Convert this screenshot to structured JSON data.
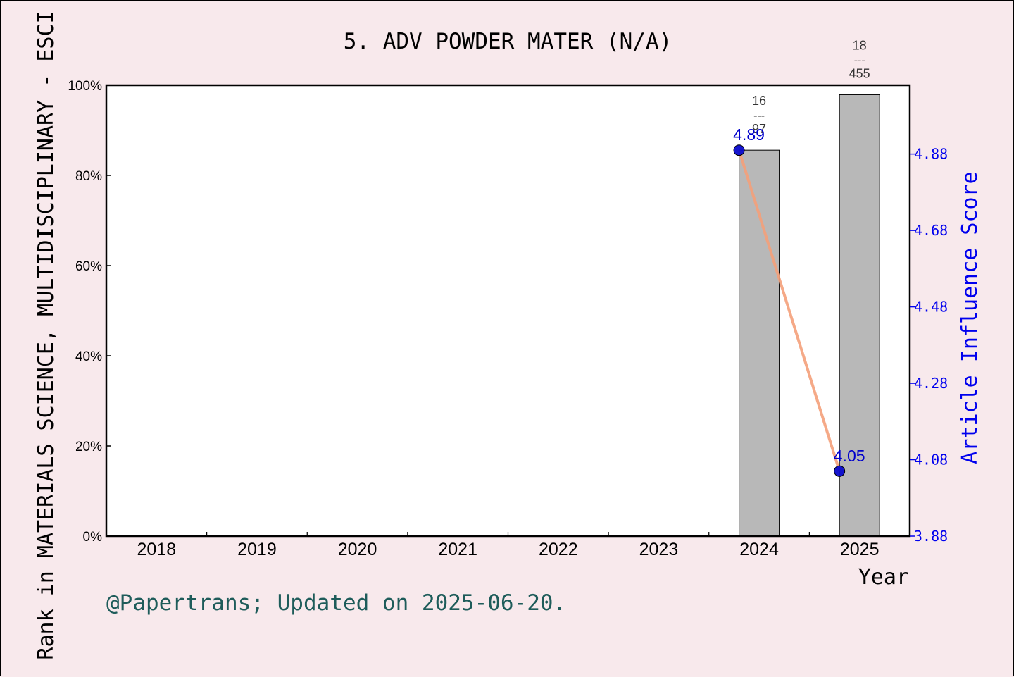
{
  "chart_data": {
    "type": "bar",
    "title": "5. ADV POWDER MATER (N/A)",
    "xlabel": "Year",
    "ylabel": "Rank in MATERIALS SCIENCE, MULTIDISCIPLINARY - ESCI",
    "y2label": "Article Influence Score",
    "categories": [
      "2018",
      "2019",
      "2020",
      "2021",
      "2022",
      "2023",
      "2024",
      "2025"
    ],
    "ylim": [
      0,
      100
    ],
    "y_ticks": [
      "0%",
      "20%",
      "40%",
      "60%",
      "80%",
      "100%"
    ],
    "y2lim": [
      3.88,
      5.06
    ],
    "y2_ticks": [
      "3.88",
      "4.08",
      "4.28",
      "4.48",
      "4.68",
      "4.88"
    ],
    "bars": [
      {
        "year": "2024",
        "value": 85.6,
        "rank": "16",
        "sep": "---",
        "total": "97"
      },
      {
        "year": "2025",
        "value": 97.9,
        "rank": "18",
        "sep": "---",
        "total": "455"
      }
    ],
    "series": [
      {
        "name": "Article Influence Score",
        "points": [
          {
            "year": "2024",
            "value": 4.89,
            "label": "4.89"
          },
          {
            "year": "2025",
            "value": 4.05,
            "label": "4.05"
          }
        ]
      }
    ],
    "footer": "@Papertrans; Updated on 2025-06-20.",
    "colors": {
      "background": "#f8e9ec",
      "bar": "#b8b8b8",
      "line": "#f4a07a",
      "marker": "#0a0acc",
      "right_axis": "#0000ee",
      "footer": "#1e5c5a"
    }
  }
}
